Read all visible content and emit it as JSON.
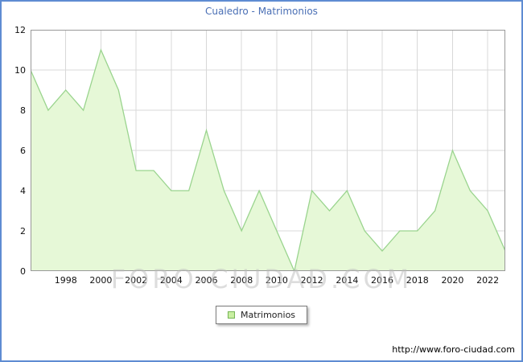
{
  "page": {
    "watermark": "FORO-CIUDAD.COM",
    "footer_url": "http://www.foro-ciudad.com"
  },
  "colors": {
    "frame_border": "#5e8cd2",
    "title_text": "#4a6fb5",
    "area_fill": "#e6f8d7",
    "area_stroke": "#9ad48e",
    "grid": "#d8d8d8",
    "plot_border": "#999999",
    "legend_swatch_fill": "#c9efa2",
    "legend_swatch_border": "#76b556",
    "watermark_text": "#bcbcbc"
  },
  "chart_data": {
    "type": "area",
    "title": "Cualedro - Matrimonios",
    "legend": [
      "Matrimonios"
    ],
    "legend_position": "bottom",
    "grid": true,
    "xlabel": "",
    "ylabel": "",
    "ylim": [
      0,
      12
    ],
    "yticks": [
      0,
      2,
      4,
      6,
      8,
      10,
      12
    ],
    "xticks": [
      1998,
      2000,
      2002,
      2004,
      2006,
      2008,
      2010,
      2012,
      2014,
      2016,
      2018,
      2020,
      2022
    ],
    "x": [
      1996,
      1997,
      1998,
      1999,
      2000,
      2001,
      2002,
      2003,
      2004,
      2005,
      2006,
      2007,
      2008,
      2009,
      2010,
      2011,
      2012,
      2013,
      2014,
      2015,
      2016,
      2017,
      2018,
      2019,
      2020,
      2021,
      2022,
      2023
    ],
    "values": [
      10,
      8,
      9,
      8,
      11,
      9,
      5,
      5,
      4,
      4,
      7,
      4,
      2,
      4,
      2,
      0,
      4,
      3,
      4,
      2,
      1,
      2,
      2,
      3,
      6,
      4,
      3,
      1
    ]
  }
}
